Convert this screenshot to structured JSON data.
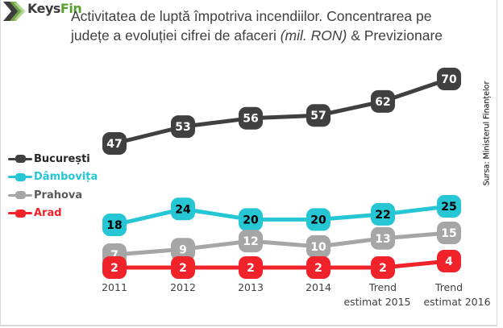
{
  "brand": {
    "logo_name": "Keys",
    "logo_accent": "Fin",
    "icon": "keysfin-chevron-logo-icon"
  },
  "title": {
    "line1": "Activitatea de luptă împotriva incendiilor.  Concentrarea pe",
    "line2_plain": "județe a evoluției cifrei de afaceri ",
    "line2_italic": "(mil. RON)",
    "line2_tail": " & Previzionare"
  },
  "source": "Sursa: Ministerul Finanțelor",
  "colors": {
    "bucuresti": "#404040",
    "dambovita": "#26c6d4",
    "prahova": "#a6a6a6",
    "arad": "#f0232a",
    "title_text": "#404040",
    "logo_dark": "#3d3d3d",
    "logo_green": "#5aa02c"
  },
  "chart_data": {
    "type": "line",
    "title": "Activitatea de luptă împotriva incendiilor. Concentrarea pe județe a evoluției cifrei de afaceri (mil. RON) & Previzionare",
    "xlabel": "",
    "ylabel": "",
    "grid": false,
    "legend_position": "left",
    "categories": [
      [
        "2011"
      ],
      [
        "2012"
      ],
      [
        "2013"
      ],
      [
        "2014"
      ],
      [
        "Trend",
        "estimat 2015"
      ],
      [
        "Trend",
        "estimat 2016"
      ]
    ],
    "series": [
      {
        "name": "București",
        "key": "bucuresti",
        "values": [
          47,
          53,
          56,
          57,
          62,
          70
        ],
        "label_color": "#ffffff"
      },
      {
        "name": "Dâmbovița",
        "key": "dambovita",
        "values": [
          18,
          24,
          20,
          20,
          22,
          25
        ],
        "label_color": "#000000"
      },
      {
        "name": "Prahova",
        "key": "prahova",
        "values": [
          7,
          9,
          12,
          10,
          13,
          15
        ],
        "label_color": "#ffffff"
      },
      {
        "name": "Arad",
        "key": "arad",
        "values": [
          2,
          2,
          2,
          2,
          2,
          4
        ],
        "label_color": "#ffffff"
      }
    ]
  }
}
